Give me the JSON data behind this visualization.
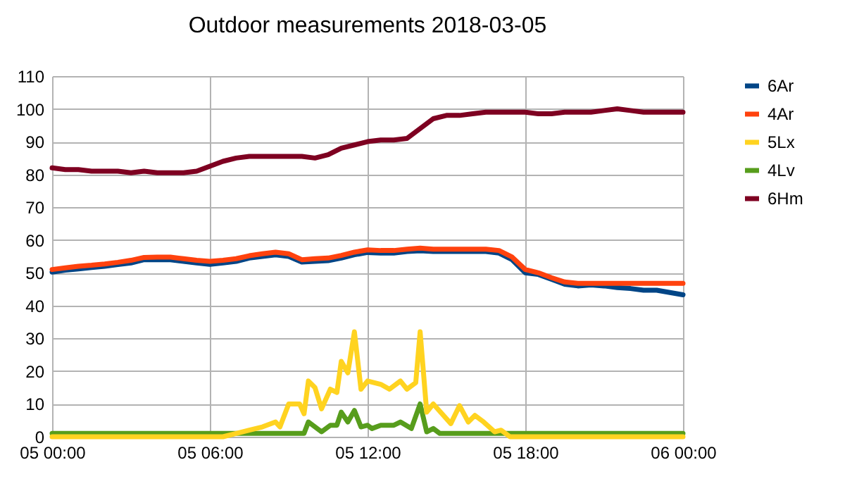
{
  "chart_data": {
    "type": "line",
    "title": "Outdoor measurements 2018-03-05",
    "xlim": [
      "2018-03-05T00:00",
      "2018-03-06T00:00"
    ],
    "xticks": [
      {
        "value": "2018-03-05T00:00",
        "label": "05 00:00"
      },
      {
        "value": "2018-03-05T06:00",
        "label": "05 06:00"
      },
      {
        "value": "2018-03-05T12:00",
        "label": "05 12:00"
      },
      {
        "value": "2018-03-05T18:00",
        "label": "05 18:00"
      },
      {
        "value": "2018-03-06T00:00",
        "label": "06 00:00"
      }
    ],
    "ylim": [
      0,
      110
    ],
    "yticks": [
      0,
      10,
      20,
      30,
      40,
      50,
      60,
      70,
      80,
      90,
      100,
      110
    ],
    "grid": true,
    "legend": "right",
    "marker": "none",
    "line_style": "solid",
    "x": [
      "2018-03-05T00:00",
      "2018-03-05T00:30",
      "2018-03-05T01:00",
      "2018-03-05T01:30",
      "2018-03-05T02:00",
      "2018-03-05T02:30",
      "2018-03-05T03:00",
      "2018-03-05T03:30",
      "2018-03-05T04:00",
      "2018-03-05T04:30",
      "2018-03-05T05:00",
      "2018-03-05T05:30",
      "2018-03-05T06:00",
      "2018-03-05T06:30",
      "2018-03-05T07:00",
      "2018-03-05T07:30",
      "2018-03-05T08:00",
      "2018-03-05T08:30",
      "2018-03-05T09:00",
      "2018-03-05T09:30",
      "2018-03-05T10:00",
      "2018-03-05T10:30",
      "2018-03-05T11:00",
      "2018-03-05T11:30",
      "2018-03-05T12:00",
      "2018-03-05T12:30",
      "2018-03-05T13:00",
      "2018-03-05T13:30",
      "2018-03-05T14:00",
      "2018-03-05T14:30",
      "2018-03-05T15:00",
      "2018-03-05T15:30",
      "2018-03-05T16:00",
      "2018-03-05T16:30",
      "2018-03-05T17:00",
      "2018-03-05T17:30",
      "2018-03-05T18:00",
      "2018-03-05T18:30",
      "2018-03-05T19:00",
      "2018-03-05T19:30",
      "2018-03-05T20:00",
      "2018-03-05T20:30",
      "2018-03-05T21:00",
      "2018-03-05T21:30",
      "2018-03-05T22:00",
      "2018-03-05T22:30",
      "2018-03-05T23:00",
      "2018-03-05T23:30",
      "2018-03-06T00:00"
    ],
    "series": [
      {
        "name": "6Ar",
        "color": "#004586",
        "values": [
          50.2,
          50.8,
          51.2,
          51.6,
          52,
          52.5,
          53,
          54,
          54,
          54,
          53.5,
          53,
          52.6,
          53,
          53.5,
          54.5,
          55,
          55.5,
          55,
          53.3,
          53.5,
          53.7,
          54.5,
          55.5,
          56.2,
          56,
          56,
          56.5,
          56.7,
          56.5,
          56.5,
          56.5,
          56.5,
          56.5,
          56,
          54,
          50,
          49.5,
          48,
          46.5,
          46,
          46.3,
          46,
          45.5,
          45.2,
          44.7,
          44.7,
          44,
          43.3
        ]
      },
      {
        "name": "4Ar",
        "color": "#ff420e",
        "values": [
          51,
          51.5,
          52,
          52.3,
          52.7,
          53.2,
          53.8,
          54.7,
          54.8,
          54.8,
          54.3,
          53.8,
          53.5,
          53.8,
          54.3,
          55.2,
          55.8,
          56.3,
          55.8,
          54,
          54.3,
          54.5,
          55.3,
          56.3,
          57,
          56.8,
          56.8,
          57.2,
          57.5,
          57.2,
          57.2,
          57.2,
          57.2,
          57.2,
          56.8,
          54.8,
          51,
          50,
          48.5,
          47.2,
          46.8,
          46.8,
          46.8,
          46.8,
          46.8,
          46.8,
          46.8,
          46.8,
          46.8
        ]
      },
      {
        "name": "5Lx",
        "color": "#ffd320",
        "x": [
          "2018-03-05T00:00",
          "2018-03-05T06:30",
          "2018-03-05T07:00",
          "2018-03-05T07:30",
          "2018-03-05T08:00",
          "2018-03-05T08:30",
          "2018-03-05T08:40",
          "2018-03-05T09:00",
          "2018-03-05T09:25",
          "2018-03-05T09:35",
          "2018-03-05T09:45",
          "2018-03-05T10:00",
          "2018-03-05T10:15",
          "2018-03-05T10:35",
          "2018-03-05T10:50",
          "2018-03-05T11:00",
          "2018-03-05T11:15",
          "2018-03-05T11:30",
          "2018-03-05T11:45",
          "2018-03-05T12:00",
          "2018-03-05T12:30",
          "2018-03-05T12:50",
          "2018-03-05T13:15",
          "2018-03-05T13:30",
          "2018-03-05T13:50",
          "2018-03-05T14:00",
          "2018-03-05T14:15",
          "2018-03-05T14:30",
          "2018-03-05T15:10",
          "2018-03-05T15:30",
          "2018-03-05T15:50",
          "2018-03-05T16:05",
          "2018-03-05T16:25",
          "2018-03-05T16:50",
          "2018-03-05T17:05",
          "2018-03-05T17:25",
          "2018-03-06T00:00"
        ],
        "values": [
          0,
          0,
          1,
          2,
          3,
          4.5,
          3,
          10,
          10,
          7,
          17,
          15,
          8.5,
          14.5,
          13.5,
          23,
          19.5,
          32,
          14.5,
          17,
          16,
          14.5,
          17,
          14.5,
          16.5,
          32,
          7.5,
          10,
          4,
          9.5,
          4.5,
          6.5,
          4.5,
          1.5,
          2,
          0,
          0
        ]
      },
      {
        "name": "4Lv",
        "color": "#579d1c",
        "x": [
          "2018-03-05T00:00",
          "2018-03-05T09:35",
          "2018-03-05T09:45",
          "2018-03-05T10:15",
          "2018-03-05T10:35",
          "2018-03-05T10:50",
          "2018-03-05T11:00",
          "2018-03-05T11:15",
          "2018-03-05T11:30",
          "2018-03-05T11:45",
          "2018-03-05T12:00",
          "2018-03-05T12:10",
          "2018-03-05T12:30",
          "2018-03-05T13:00",
          "2018-03-05T13:15",
          "2018-03-05T13:40",
          "2018-03-05T14:00",
          "2018-03-05T14:15",
          "2018-03-05T14:30",
          "2018-03-05T14:45",
          "2018-03-06T00:00"
        ],
        "values": [
          1,
          1,
          4.5,
          1.5,
          3.5,
          3.5,
          7.5,
          4.5,
          8,
          3,
          3.5,
          2.5,
          3.5,
          3.5,
          4.5,
          2.5,
          10,
          1.5,
          2.5,
          1,
          1
        ]
      },
      {
        "name": "6Hm",
        "color": "#7e0021",
        "values": [
          82,
          81.5,
          81.5,
          81,
          81,
          81,
          80.5,
          81,
          80.5,
          80.5,
          80.5,
          81,
          82.5,
          84,
          85,
          85.5,
          85.5,
          85.5,
          85.5,
          85.5,
          85,
          86,
          88,
          89,
          90,
          90.5,
          90.5,
          91,
          94,
          97,
          98,
          98,
          98.5,
          99,
          99,
          99,
          99,
          98.5,
          98.5,
          99,
          99,
          99,
          99.5,
          100,
          99.5,
          99,
          99,
          99,
          99
        ]
      }
    ]
  }
}
